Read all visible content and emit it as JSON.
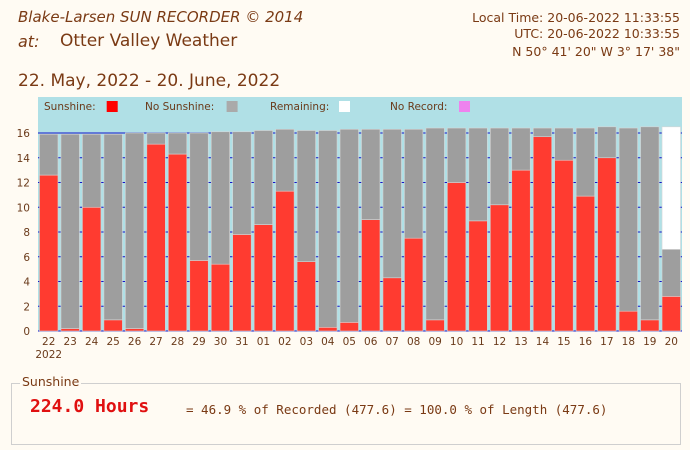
{
  "header": {
    "title": "Blake-Larsen SUN RECORDER © 2014",
    "at_label": "at:",
    "station": "Otter Valley Weather",
    "local_time": "Local Time: 20-06-2022 11:33:55",
    "utc_time": "UTC: 20-06-2022 10:33:55",
    "coordinates": "N 50° 41' 20\"     W 3° 17' 38\""
  },
  "date_range": "22. May, 2022   -   20. June, 2022",
  "legend": [
    {
      "label": "Sunshine:",
      "color": "#ff0000"
    },
    {
      "label": "No Sunshine:",
      "color": "#aaaaaa"
    },
    {
      "label": "Remaining:",
      "color": "#ffffff"
    },
    {
      "label": "No Record:",
      "color": "#ee82ee"
    }
  ],
  "colors": {
    "sunshine": "#ff3b30",
    "no_sunshine": "#9e9e9e",
    "remaining": "#ffffff",
    "legend_bg": "#b0e0e6",
    "grid": "#1414c8"
  },
  "chart_data": {
    "type": "bar",
    "stacked": true,
    "categories": [
      "22",
      "23",
      "24",
      "25",
      "26",
      "27",
      "28",
      "29",
      "30",
      "31",
      "01",
      "02",
      "03",
      "04",
      "05",
      "06",
      "07",
      "08",
      "09",
      "10",
      "11",
      "12",
      "13",
      "14",
      "15",
      "16",
      "17",
      "18",
      "19",
      "20"
    ],
    "year_label": "2022",
    "ylim": [
      0,
      16
    ],
    "yticks": [
      0,
      2,
      4,
      6,
      8,
      10,
      12,
      14,
      16
    ],
    "grid": true,
    "legend_position": "top",
    "series": [
      {
        "name": "Sunshine",
        "values": [
          12.6,
          0.2,
          10.0,
          0.9,
          0.2,
          15.1,
          14.3,
          5.7,
          5.4,
          7.8,
          8.6,
          11.3,
          5.6,
          0.3,
          0.7,
          9.0,
          4.3,
          7.5,
          0.9,
          12.0,
          8.9,
          10.2,
          13.0,
          15.7,
          13.8,
          10.9,
          14.0,
          1.6,
          0.9,
          2.8
        ]
      },
      {
        "name": "No Sunshine",
        "values": [
          3.3,
          15.7,
          5.9,
          15.0,
          15.8,
          0.9,
          1.7,
          10.3,
          10.7,
          8.3,
          7.6,
          5.0,
          10.6,
          15.9,
          15.6,
          7.3,
          12.0,
          8.8,
          15.5,
          4.4,
          7.5,
          6.2,
          3.4,
          0.7,
          2.6,
          5.5,
          2.5,
          14.8,
          15.6,
          3.8
        ]
      },
      {
        "name": "Remaining",
        "values": [
          0,
          0,
          0,
          0,
          0,
          0,
          0,
          0,
          0,
          0,
          0,
          0,
          0,
          0,
          0,
          0,
          0,
          0,
          0,
          0,
          0,
          0,
          0,
          0,
          0,
          0,
          0,
          0,
          0,
          9.9
        ]
      }
    ]
  },
  "summary": {
    "legend": "Sunshine",
    "total": "224.0 Hours",
    "detail": "= 46.9 % of Recorded (477.6) = 100.0 % of Length (477.6)"
  }
}
